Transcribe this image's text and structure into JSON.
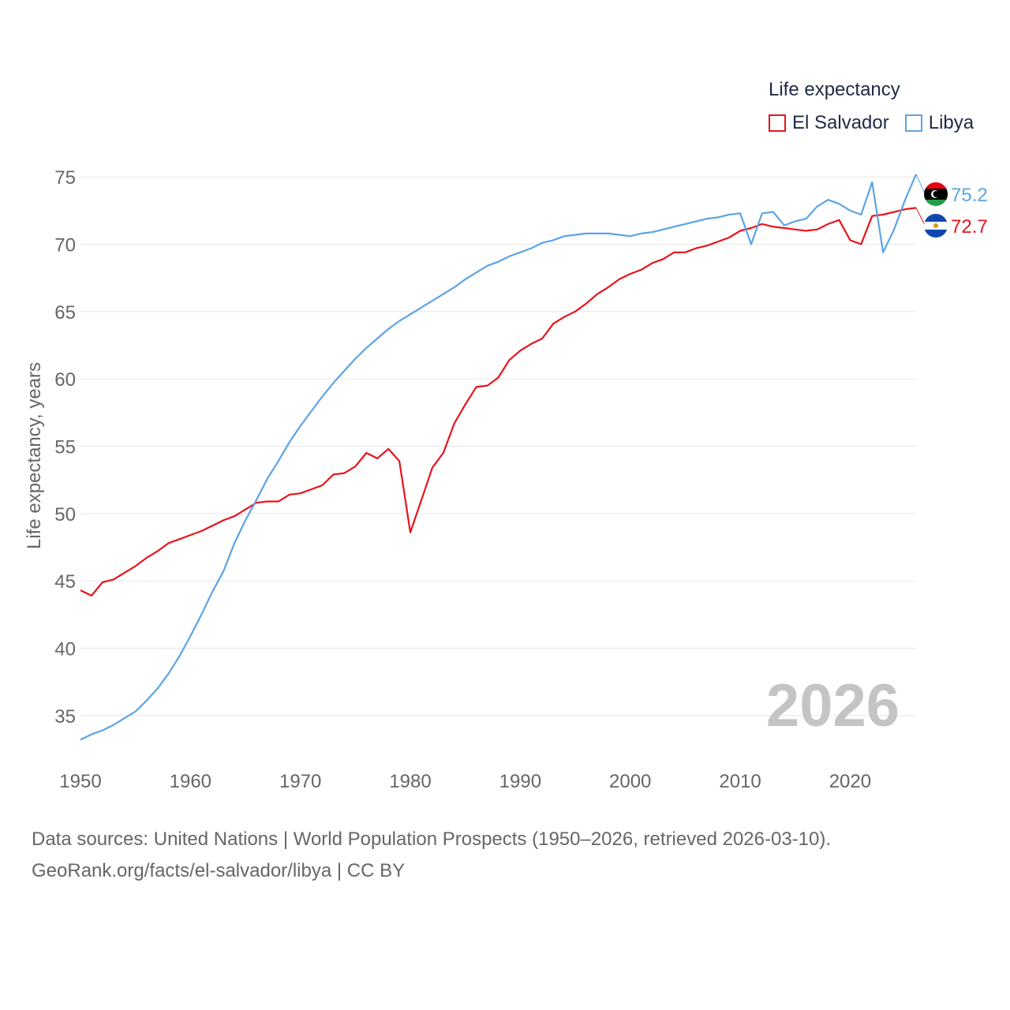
{
  "chart_data": {
    "type": "line",
    "legend_title": "Life expectancy",
    "ylabel": "Life expectancy, years",
    "xlabel": "",
    "current_year": "2026",
    "xlim": [
      1950,
      2026
    ],
    "ylim": [
      32,
      78
    ],
    "xticks": [
      1950,
      1960,
      1970,
      1980,
      1990,
      2000,
      2010,
      2020
    ],
    "yticks": [
      35,
      40,
      45,
      50,
      55,
      60,
      65,
      70,
      75
    ],
    "legend_position": "top-right",
    "series": [
      {
        "name": "El Salvador",
        "color": "#e8131b",
        "end_label": "72.7",
        "flag_icon": "el-salvador-flag-icon",
        "x": [
          1950,
          1951,
          1952,
          1953,
          1954,
          1955,
          1956,
          1957,
          1958,
          1959,
          1960,
          1961,
          1962,
          1963,
          1964,
          1965,
          1966,
          1967,
          1968,
          1969,
          1970,
          1971,
          1972,
          1973,
          1974,
          1975,
          1976,
          1977,
          1978,
          1979,
          1980,
          1981,
          1982,
          1983,
          1984,
          1985,
          1986,
          1987,
          1988,
          1989,
          1990,
          1991,
          1992,
          1993,
          1994,
          1995,
          1996,
          1997,
          1998,
          1999,
          2000,
          2001,
          2002,
          2003,
          2004,
          2005,
          2006,
          2007,
          2008,
          2009,
          2010,
          2011,
          2012,
          2013,
          2014,
          2015,
          2016,
          2017,
          2018,
          2019,
          2020,
          2021,
          2022,
          2023,
          2024,
          2025,
          2026
        ],
        "values": [
          44.3,
          43.9,
          44.9,
          45.1,
          45.6,
          46.1,
          46.7,
          47.2,
          47.8,
          48.1,
          48.4,
          48.7,
          49.1,
          49.5,
          49.8,
          50.3,
          50.8,
          50.9,
          50.9,
          51.4,
          51.5,
          51.8,
          52.1,
          52.9,
          53.0,
          53.5,
          54.5,
          54.1,
          54.8,
          53.9,
          48.6,
          51.0,
          53.4,
          54.5,
          56.7,
          58.1,
          59.4,
          59.5,
          60.1,
          61.4,
          62.1,
          62.6,
          63.0,
          64.1,
          64.6,
          65.0,
          65.6,
          66.3,
          66.8,
          67.4,
          67.8,
          68.1,
          68.6,
          68.9,
          69.4,
          69.4,
          69.7,
          69.9,
          70.2,
          70.5,
          71.0,
          71.2,
          71.5,
          71.3,
          71.2,
          71.1,
          71.0,
          71.1,
          71.5,
          71.8,
          70.3,
          70.0,
          72.1,
          72.2,
          72.4,
          72.6,
          72.7
        ]
      },
      {
        "name": "Libya",
        "color": "#5ca4e6",
        "end_label": "75.2",
        "flag_icon": "libya-flag-icon",
        "x": [
          1950,
          1951,
          1952,
          1953,
          1954,
          1955,
          1956,
          1957,
          1958,
          1959,
          1960,
          1961,
          1962,
          1963,
          1964,
          1965,
          1966,
          1967,
          1968,
          1969,
          1970,
          1971,
          1972,
          1973,
          1974,
          1975,
          1976,
          1977,
          1978,
          1979,
          1980,
          1981,
          1982,
          1983,
          1984,
          1985,
          1986,
          1987,
          1988,
          1989,
          1990,
          1991,
          1992,
          1993,
          1994,
          1995,
          1996,
          1997,
          1998,
          1999,
          2000,
          2001,
          2002,
          2003,
          2004,
          2005,
          2006,
          2007,
          2008,
          2009,
          2010,
          2011,
          2012,
          2013,
          2014,
          2015,
          2016,
          2017,
          2018,
          2019,
          2020,
          2021,
          2022,
          2023,
          2024,
          2025,
          2026
        ],
        "values": [
          33.2,
          33.6,
          33.9,
          34.3,
          34.8,
          35.3,
          36.1,
          37.0,
          38.1,
          39.4,
          40.9,
          42.5,
          44.2,
          45.7,
          47.8,
          49.5,
          51.0,
          52.6,
          53.9,
          55.3,
          56.5,
          57.6,
          58.7,
          59.7,
          60.6,
          61.5,
          62.3,
          63.0,
          63.7,
          64.3,
          64.8,
          65.3,
          65.8,
          66.3,
          66.8,
          67.4,
          67.9,
          68.4,
          68.7,
          69.1,
          69.4,
          69.7,
          70.1,
          70.3,
          70.6,
          70.7,
          70.8,
          70.8,
          70.8,
          70.7,
          70.6,
          70.8,
          70.9,
          71.1,
          71.3,
          71.5,
          71.7,
          71.9,
          72.0,
          72.2,
          72.3,
          70.0,
          72.3,
          72.4,
          71.4,
          71.7,
          71.9,
          72.8,
          73.3,
          73.0,
          72.5,
          72.2,
          74.6,
          69.4,
          71.1,
          73.3,
          75.2
        ]
      }
    ]
  },
  "footer": {
    "sources": "Data sources: United Nations | World Population Prospects (1950–2026, retrieved 2026-03-10).",
    "attribution": "GeoRank.org/facts/el-salvador/libya | CC BY"
  }
}
